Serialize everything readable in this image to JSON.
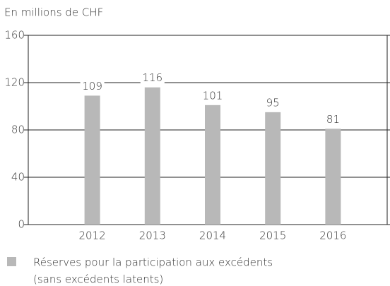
{
  "chart_data": {
    "type": "bar",
    "title": "En millions de CHF",
    "categories": [
      "2012",
      "2013",
      "2014",
      "2015",
      "2016"
    ],
    "series": [
      {
        "name": "Réserves pour la participation aux excédents",
        "note": "(sans excédents latents)",
        "color": "#b8b8b8",
        "values": [
          109,
          116,
          101,
          95,
          81
        ]
      }
    ],
    "ylim": [
      0,
      160
    ],
    "yticks": [
      0,
      40,
      80,
      120,
      160
    ],
    "grid": true
  }
}
